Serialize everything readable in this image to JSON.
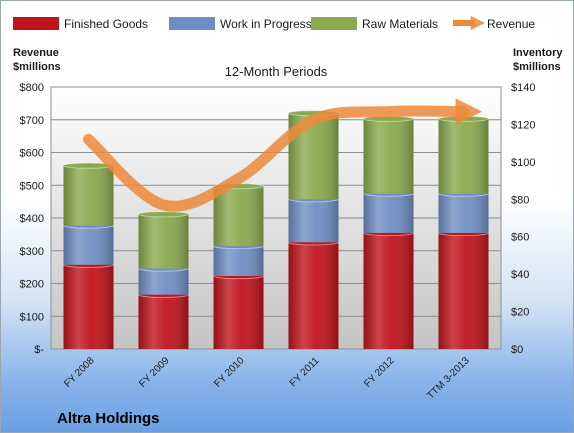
{
  "chart_data": {
    "type": "bar",
    "stacked": true,
    "title": "12-Month Periods",
    "ylabel_left": [
      "Revenue",
      "$millions"
    ],
    "ylabel_right": [
      "Inventory",
      "$millions"
    ],
    "categories": [
      "FY 2008",
      "FY 2009",
      "FY 2010",
      "FY 2011",
      "FY 2012",
      "TTM 3-2013"
    ],
    "y_left_ticks": [
      "$-",
      "$100",
      "$200",
      "$300",
      "$400",
      "$500",
      "$600",
      "$700",
      "$800"
    ],
    "y_right_ticks": [
      "$0",
      "$20",
      "$40",
      "$60",
      "$80",
      "$100",
      "$120",
      "$140"
    ],
    "ylim_left": [
      0,
      800
    ],
    "ylim_right": [
      0,
      140
    ],
    "series": [
      {
        "name": "Finished Goods",
        "axis": "right",
        "color": "#c0141c",
        "values": [
          45,
          29,
          39,
          57,
          62,
          62
        ]
      },
      {
        "name": "Work in Progress",
        "axis": "right",
        "color": "#6f8fc4",
        "values": [
          21,
          14,
          16,
          23,
          21,
          21
        ]
      },
      {
        "name": "Raw Materials",
        "axis": "right",
        "color": "#8aaa4e",
        "values": [
          32,
          29,
          32,
          46,
          40,
          40
        ]
      }
    ],
    "line_series": {
      "name": "Revenue",
      "axis": "left",
      "color": "#ec8a3a",
      "values": [
        640,
        440,
        520,
        700,
        725,
        725
      ]
    },
    "grid": true,
    "legend_position": "top"
  },
  "company": "Altra Holdings"
}
